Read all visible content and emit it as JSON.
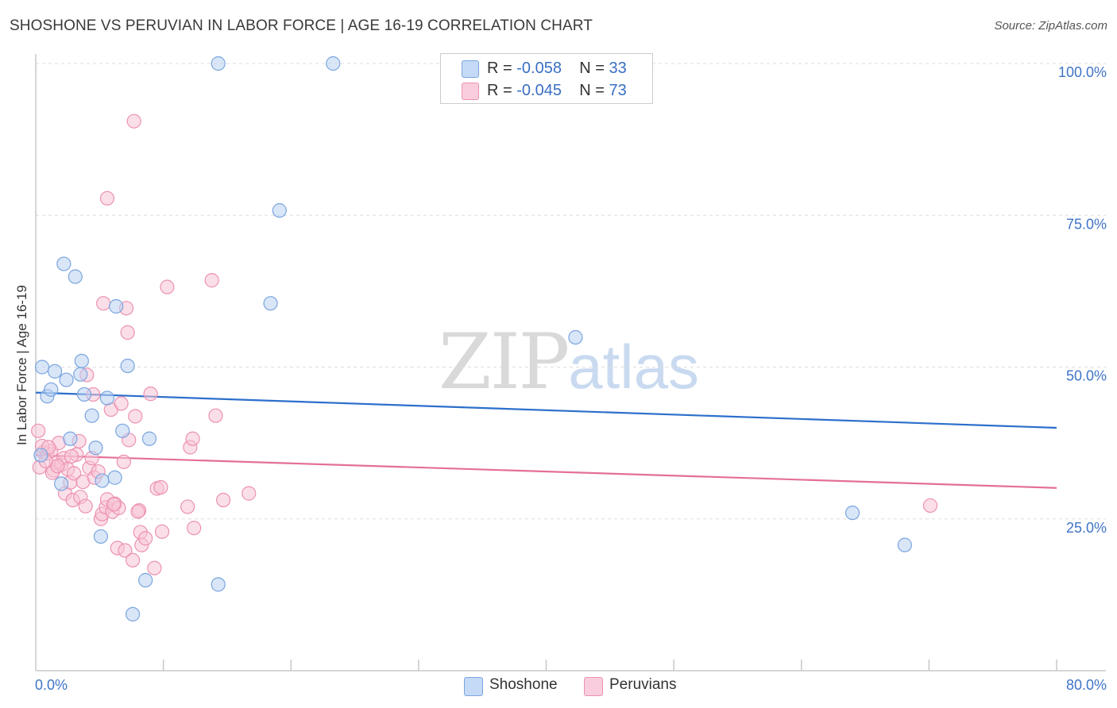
{
  "header": {
    "title": "SHOSHONE VS PERUVIAN IN LABOR FORCE | AGE 16-19 CORRELATION CHART",
    "source": "Source: ZipAtlas.com"
  },
  "watermark": {
    "zip": "ZIP",
    "atlas": "atlas"
  },
  "legend": {
    "rows": [
      {
        "r_label": "R =",
        "r_value": "-0.058",
        "n_label": "N =",
        "n_value": "33"
      },
      {
        "r_label": "R =",
        "r_value": "-0.045",
        "n_label": "N =",
        "n_value": "73"
      }
    ]
  },
  "bottom_legend": {
    "series1": "Shoshone",
    "series2": "Peruvians"
  },
  "colors": {
    "shoshone_fill": "#b9d1f3",
    "shoshone_stroke": "#7aa5de",
    "shoshone_line": "#2c6fcc",
    "peruvians_fill": "#f7c4d5",
    "peruvians_stroke": "#ec91b2",
    "peruvians_line": "#e46f99",
    "tick_label": "#3f74c6",
    "grid": "#dddddd",
    "axis": "#c8c8c8"
  },
  "chart_data": {
    "type": "scatter",
    "title": "SHOSHONE VS PERUVIAN IN LABOR FORCE | AGE 16-19 CORRELATION CHART",
    "xlabel": "",
    "ylabel": "In Labor Force | Age 16-19",
    "xlim": [
      0,
      80
    ],
    "ylim": [
      0,
      100
    ],
    "x_tick_labels": [
      {
        "value": 0,
        "label": "0.0%"
      },
      {
        "value": 80,
        "label": "80.0%"
      }
    ],
    "y_tick_labels": [
      {
        "value": 25,
        "label": "25.0%"
      },
      {
        "value": 50,
        "label": "50.0%"
      },
      {
        "value": 75,
        "label": "75.0%"
      },
      {
        "value": 100,
        "label": "100.0%"
      }
    ],
    "grid": true,
    "series": [
      {
        "name": "Shoshone",
        "r": -0.058,
        "n": 33,
        "trend": [
          [
            0,
            45.8
          ],
          [
            80,
            40.0
          ]
        ],
        "points": [
          [
            0.4,
            35.5
          ],
          [
            0.5,
            50.0
          ],
          [
            0.9,
            45.2
          ],
          [
            1.2,
            46.3
          ],
          [
            1.5,
            49.3
          ],
          [
            2.0,
            30.8
          ],
          [
            2.2,
            67.0
          ],
          [
            2.4,
            47.9
          ],
          [
            2.7,
            38.2
          ],
          [
            3.1,
            64.9
          ],
          [
            3.5,
            48.8
          ],
          [
            3.6,
            51.0
          ],
          [
            3.8,
            45.5
          ],
          [
            4.4,
            42.0
          ],
          [
            4.7,
            36.7
          ],
          [
            5.1,
            22.1
          ],
          [
            5.2,
            31.3
          ],
          [
            5.6,
            44.9
          ],
          [
            6.2,
            31.8
          ],
          [
            6.3,
            60.0
          ],
          [
            6.8,
            39.5
          ],
          [
            7.2,
            50.2
          ],
          [
            7.6,
            9.3
          ],
          [
            8.6,
            14.9
          ],
          [
            8.9,
            38.2
          ],
          [
            14.3,
            14.2
          ],
          [
            14.3,
            100.0
          ],
          [
            18.4,
            60.5
          ],
          [
            19.1,
            75.8
          ],
          [
            23.3,
            100.0
          ],
          [
            42.3,
            54.9
          ],
          [
            64.0,
            26.0
          ],
          [
            68.1,
            20.7
          ]
        ]
      },
      {
        "name": "Peruvians",
        "r": -0.045,
        "n": 73,
        "trend": [
          [
            0,
            35.5
          ],
          [
            80,
            30.1
          ]
        ],
        "points": [
          [
            0.3,
            33.5
          ],
          [
            0.6,
            36.0
          ],
          [
            0.9,
            35.8
          ],
          [
            1.2,
            36.2
          ],
          [
            1.4,
            33.0
          ],
          [
            1.6,
            34.2
          ],
          [
            1.8,
            37.5
          ],
          [
            2.0,
            33.9
          ],
          [
            2.2,
            35.0
          ],
          [
            2.3,
            29.2
          ],
          [
            2.5,
            33.2
          ],
          [
            2.7,
            31.0
          ],
          [
            2.9,
            28.1
          ],
          [
            3.0,
            32.5
          ],
          [
            3.2,
            35.6
          ],
          [
            3.4,
            37.8
          ],
          [
            3.5,
            28.6
          ],
          [
            3.7,
            31.1
          ],
          [
            3.9,
            27.1
          ],
          [
            4.0,
            48.7
          ],
          [
            4.2,
            33.4
          ],
          [
            4.4,
            35.0
          ],
          [
            4.5,
            45.5
          ],
          [
            4.6,
            31.8
          ],
          [
            4.9,
            32.8
          ],
          [
            5.1,
            25.0
          ],
          [
            5.2,
            25.8
          ],
          [
            5.3,
            60.5
          ],
          [
            5.5,
            26.9
          ],
          [
            5.6,
            28.2
          ],
          [
            5.6,
            77.8
          ],
          [
            5.9,
            43.0
          ],
          [
            6.0,
            26.2
          ],
          [
            6.2,
            27.5
          ],
          [
            6.4,
            20.2
          ],
          [
            6.5,
            26.8
          ],
          [
            6.7,
            44.0
          ],
          [
            6.9,
            34.4
          ],
          [
            7.0,
            19.8
          ],
          [
            7.1,
            59.7
          ],
          [
            7.2,
            55.7
          ],
          [
            7.3,
            38.0
          ],
          [
            7.6,
            18.2
          ],
          [
            7.7,
            90.5
          ],
          [
            7.8,
            41.9
          ],
          [
            8.1,
            26.4
          ],
          [
            8.2,
            22.8
          ],
          [
            8.3,
            20.7
          ],
          [
            8.6,
            21.8
          ],
          [
            9.0,
            45.6
          ],
          [
            9.3,
            16.9
          ],
          [
            9.5,
            30.0
          ],
          [
            9.8,
            30.2
          ],
          [
            9.9,
            22.9
          ],
          [
            10.3,
            63.2
          ],
          [
            11.9,
            27.0
          ],
          [
            12.1,
            36.8
          ],
          [
            12.3,
            38.2
          ],
          [
            12.4,
            23.5
          ],
          [
            13.8,
            64.3
          ],
          [
            14.1,
            42.0
          ],
          [
            14.7,
            28.1
          ],
          [
            16.7,
            29.2
          ],
          [
            70.1,
            27.2
          ],
          [
            0.2,
            39.5
          ],
          [
            0.5,
            37.0
          ],
          [
            0.8,
            34.5
          ],
          [
            1.0,
            36.8
          ],
          [
            1.3,
            32.6
          ],
          [
            1.7,
            33.7
          ],
          [
            2.8,
            35.3
          ],
          [
            6.1,
            27.4
          ],
          [
            8.0,
            26.2
          ]
        ]
      }
    ]
  }
}
